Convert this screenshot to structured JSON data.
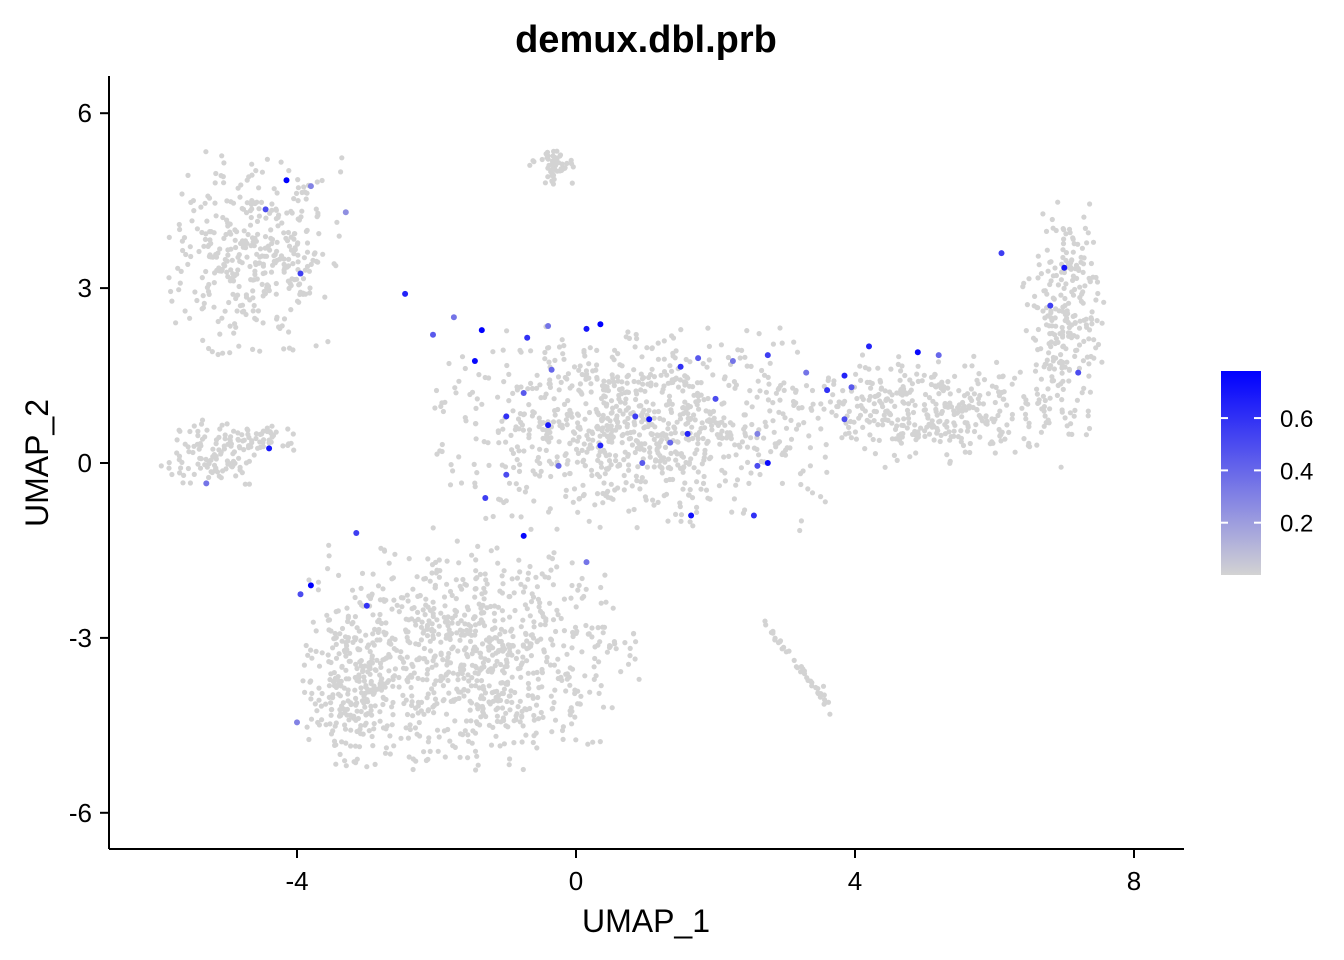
{
  "chart_data": {
    "type": "scatter",
    "title": "demux.dbl.prb",
    "xlabel": "UMAP_1",
    "ylabel": "UMAP_2",
    "xlim": [
      -6.7,
      8.7
    ],
    "ylim": [
      -6.6,
      6.6
    ],
    "x_ticks": [
      -4,
      0,
      4,
      8
    ],
    "y_ticks": [
      -6,
      -3,
      0,
      3,
      6
    ],
    "x_tick_labels": [
      "-4",
      "0",
      "4",
      "8"
    ],
    "y_tick_labels": [
      "-6",
      "-3",
      "0",
      "3",
      "6"
    ],
    "grid": false,
    "legend": {
      "placement": "right",
      "type": "colorbar",
      "range": [
        0,
        0.78
      ],
      "ticks": [
        0.2,
        0.4,
        0.6
      ],
      "tick_labels": [
        "0.2",
        "0.4",
        "0.6"
      ],
      "low_color": "#d3d3d3",
      "high_color": "#0000ff"
    },
    "colors": {
      "low": "#d3d3d3",
      "high": "#0000ff"
    },
    "clusters": [
      {
        "region": "top-left",
        "cx": -4.6,
        "cy": 3.6,
        "rx": 1.2,
        "ry": 1.6,
        "n": 380
      },
      {
        "region": "left-middle",
        "cx": -5.2,
        "cy": 0.1,
        "rx": 0.7,
        "ry": 0.6,
        "n": 110
      },
      {
        "region": "left-small",
        "cx": -4.5,
        "cy": 0.4,
        "rx": 0.5,
        "ry": 0.25,
        "n": 40
      },
      {
        "region": "top-center-small",
        "cx": -0.35,
        "cy": 5.1,
        "rx": 0.3,
        "ry": 0.3,
        "n": 55
      },
      {
        "region": "center",
        "cx": 0.8,
        "cy": 0.6,
        "rx": 2.6,
        "ry": 1.6,
        "n": 900
      },
      {
        "region": "right-arm",
        "cx": 5.0,
        "cy": 0.9,
        "rx": 2.0,
        "ry": 0.9,
        "n": 380
      },
      {
        "region": "far-right",
        "cx": 7.0,
        "cy": 2.4,
        "rx": 0.55,
        "ry": 2.0,
        "n": 260
      },
      {
        "region": "bottom",
        "cx": -1.5,
        "cy": -3.3,
        "rx": 2.2,
        "ry": 1.8,
        "n": 900
      },
      {
        "region": "bottom-left",
        "cx": -3.2,
        "cy": -3.9,
        "rx": 0.7,
        "ry": 1.2,
        "n": 180
      },
      {
        "region": "diagonal-streak",
        "cx": 3.0,
        "cy": -3.6,
        "rx": 0.7,
        "ry": 0.1,
        "n": 40
      }
    ],
    "highlighted_points": [
      {
        "x": -4.15,
        "y": 4.85,
        "v": 0.78
      },
      {
        "x": -4.45,
        "y": 4.35,
        "v": 0.5
      },
      {
        "x": -3.95,
        "y": 3.25,
        "v": 0.55
      },
      {
        "x": -3.8,
        "y": 4.75,
        "v": 0.3
      },
      {
        "x": -3.3,
        "y": 4.3,
        "v": 0.25
      },
      {
        "x": -4.4,
        "y": 0.25,
        "v": 0.7
      },
      {
        "x": -5.3,
        "y": -0.35,
        "v": 0.35
      },
      {
        "x": -2.45,
        "y": 2.9,
        "v": 0.65
      },
      {
        "x": -1.35,
        "y": 2.28,
        "v": 0.78
      },
      {
        "x": -1.45,
        "y": 1.75,
        "v": 0.75
      },
      {
        "x": -1.75,
        "y": 2.5,
        "v": 0.35
      },
      {
        "x": -2.05,
        "y": 2.2,
        "v": 0.45
      },
      {
        "x": -0.7,
        "y": 2.15,
        "v": 0.6
      },
      {
        "x": -0.4,
        "y": 2.35,
        "v": 0.35
      },
      {
        "x": 0.15,
        "y": 2.3,
        "v": 0.7
      },
      {
        "x": 0.35,
        "y": 2.38,
        "v": 0.78
      },
      {
        "x": -0.35,
        "y": 1.6,
        "v": 0.4
      },
      {
        "x": -0.75,
        "y": 1.2,
        "v": 0.45
      },
      {
        "x": -1.0,
        "y": 0.8,
        "v": 0.6
      },
      {
        "x": -0.4,
        "y": 0.65,
        "v": 0.7
      },
      {
        "x": 0.35,
        "y": 0.3,
        "v": 0.65
      },
      {
        "x": 0.85,
        "y": 0.8,
        "v": 0.55
      },
      {
        "x": 1.05,
        "y": 0.75,
        "v": 0.72
      },
      {
        "x": 1.35,
        "y": 0.35,
        "v": 0.4
      },
      {
        "x": 1.6,
        "y": 0.5,
        "v": 0.65
      },
      {
        "x": 1.5,
        "y": 1.65,
        "v": 0.6
      },
      {
        "x": 1.75,
        "y": 1.8,
        "v": 0.45
      },
      {
        "x": 2.0,
        "y": 1.1,
        "v": 0.5
      },
      {
        "x": 2.25,
        "y": 1.75,
        "v": 0.35
      },
      {
        "x": 2.6,
        "y": 0.5,
        "v": 0.3
      },
      {
        "x": 2.75,
        "y": 0.0,
        "v": 0.75
      },
      {
        "x": 2.6,
        "y": -0.05,
        "v": 0.5
      },
      {
        "x": 2.55,
        "y": -0.9,
        "v": 0.6
      },
      {
        "x": 1.65,
        "y": -0.9,
        "v": 0.72
      },
      {
        "x": -0.75,
        "y": -1.25,
        "v": 0.75
      },
      {
        "x": -1.0,
        "y": -0.2,
        "v": 0.5
      },
      {
        "x": -1.3,
        "y": -0.6,
        "v": 0.55
      },
      {
        "x": -0.25,
        "y": -0.05,
        "v": 0.4
      },
      {
        "x": 0.95,
        "y": 0.0,
        "v": 0.45
      },
      {
        "x": 2.75,
        "y": 1.85,
        "v": 0.55
      },
      {
        "x": 3.3,
        "y": 1.55,
        "v": 0.35
      },
      {
        "x": 3.85,
        "y": 1.5,
        "v": 0.65
      },
      {
        "x": 3.6,
        "y": 1.25,
        "v": 0.6
      },
      {
        "x": 3.95,
        "y": 1.3,
        "v": 0.45
      },
      {
        "x": 4.2,
        "y": 2.0,
        "v": 0.65
      },
      {
        "x": 4.9,
        "y": 1.9,
        "v": 0.75
      },
      {
        "x": 5.2,
        "y": 1.85,
        "v": 0.4
      },
      {
        "x": 3.85,
        "y": 0.75,
        "v": 0.5
      },
      {
        "x": 6.1,
        "y": 3.6,
        "v": 0.55
      },
      {
        "x": 7.0,
        "y": 3.35,
        "v": 0.7
      },
      {
        "x": 6.8,
        "y": 2.7,
        "v": 0.55
      },
      {
        "x": 7.2,
        "y": 1.55,
        "v": 0.5
      },
      {
        "x": -3.8,
        "y": -2.1,
        "v": 0.78
      },
      {
        "x": -3.95,
        "y": -2.25,
        "v": 0.5
      },
      {
        "x": -3.15,
        "y": -1.2,
        "v": 0.55
      },
      {
        "x": -3.0,
        "y": -2.45,
        "v": 0.6
      },
      {
        "x": 0.15,
        "y": -1.7,
        "v": 0.35
      },
      {
        "x": -4.0,
        "y": -4.45,
        "v": 0.3
      }
    ]
  }
}
